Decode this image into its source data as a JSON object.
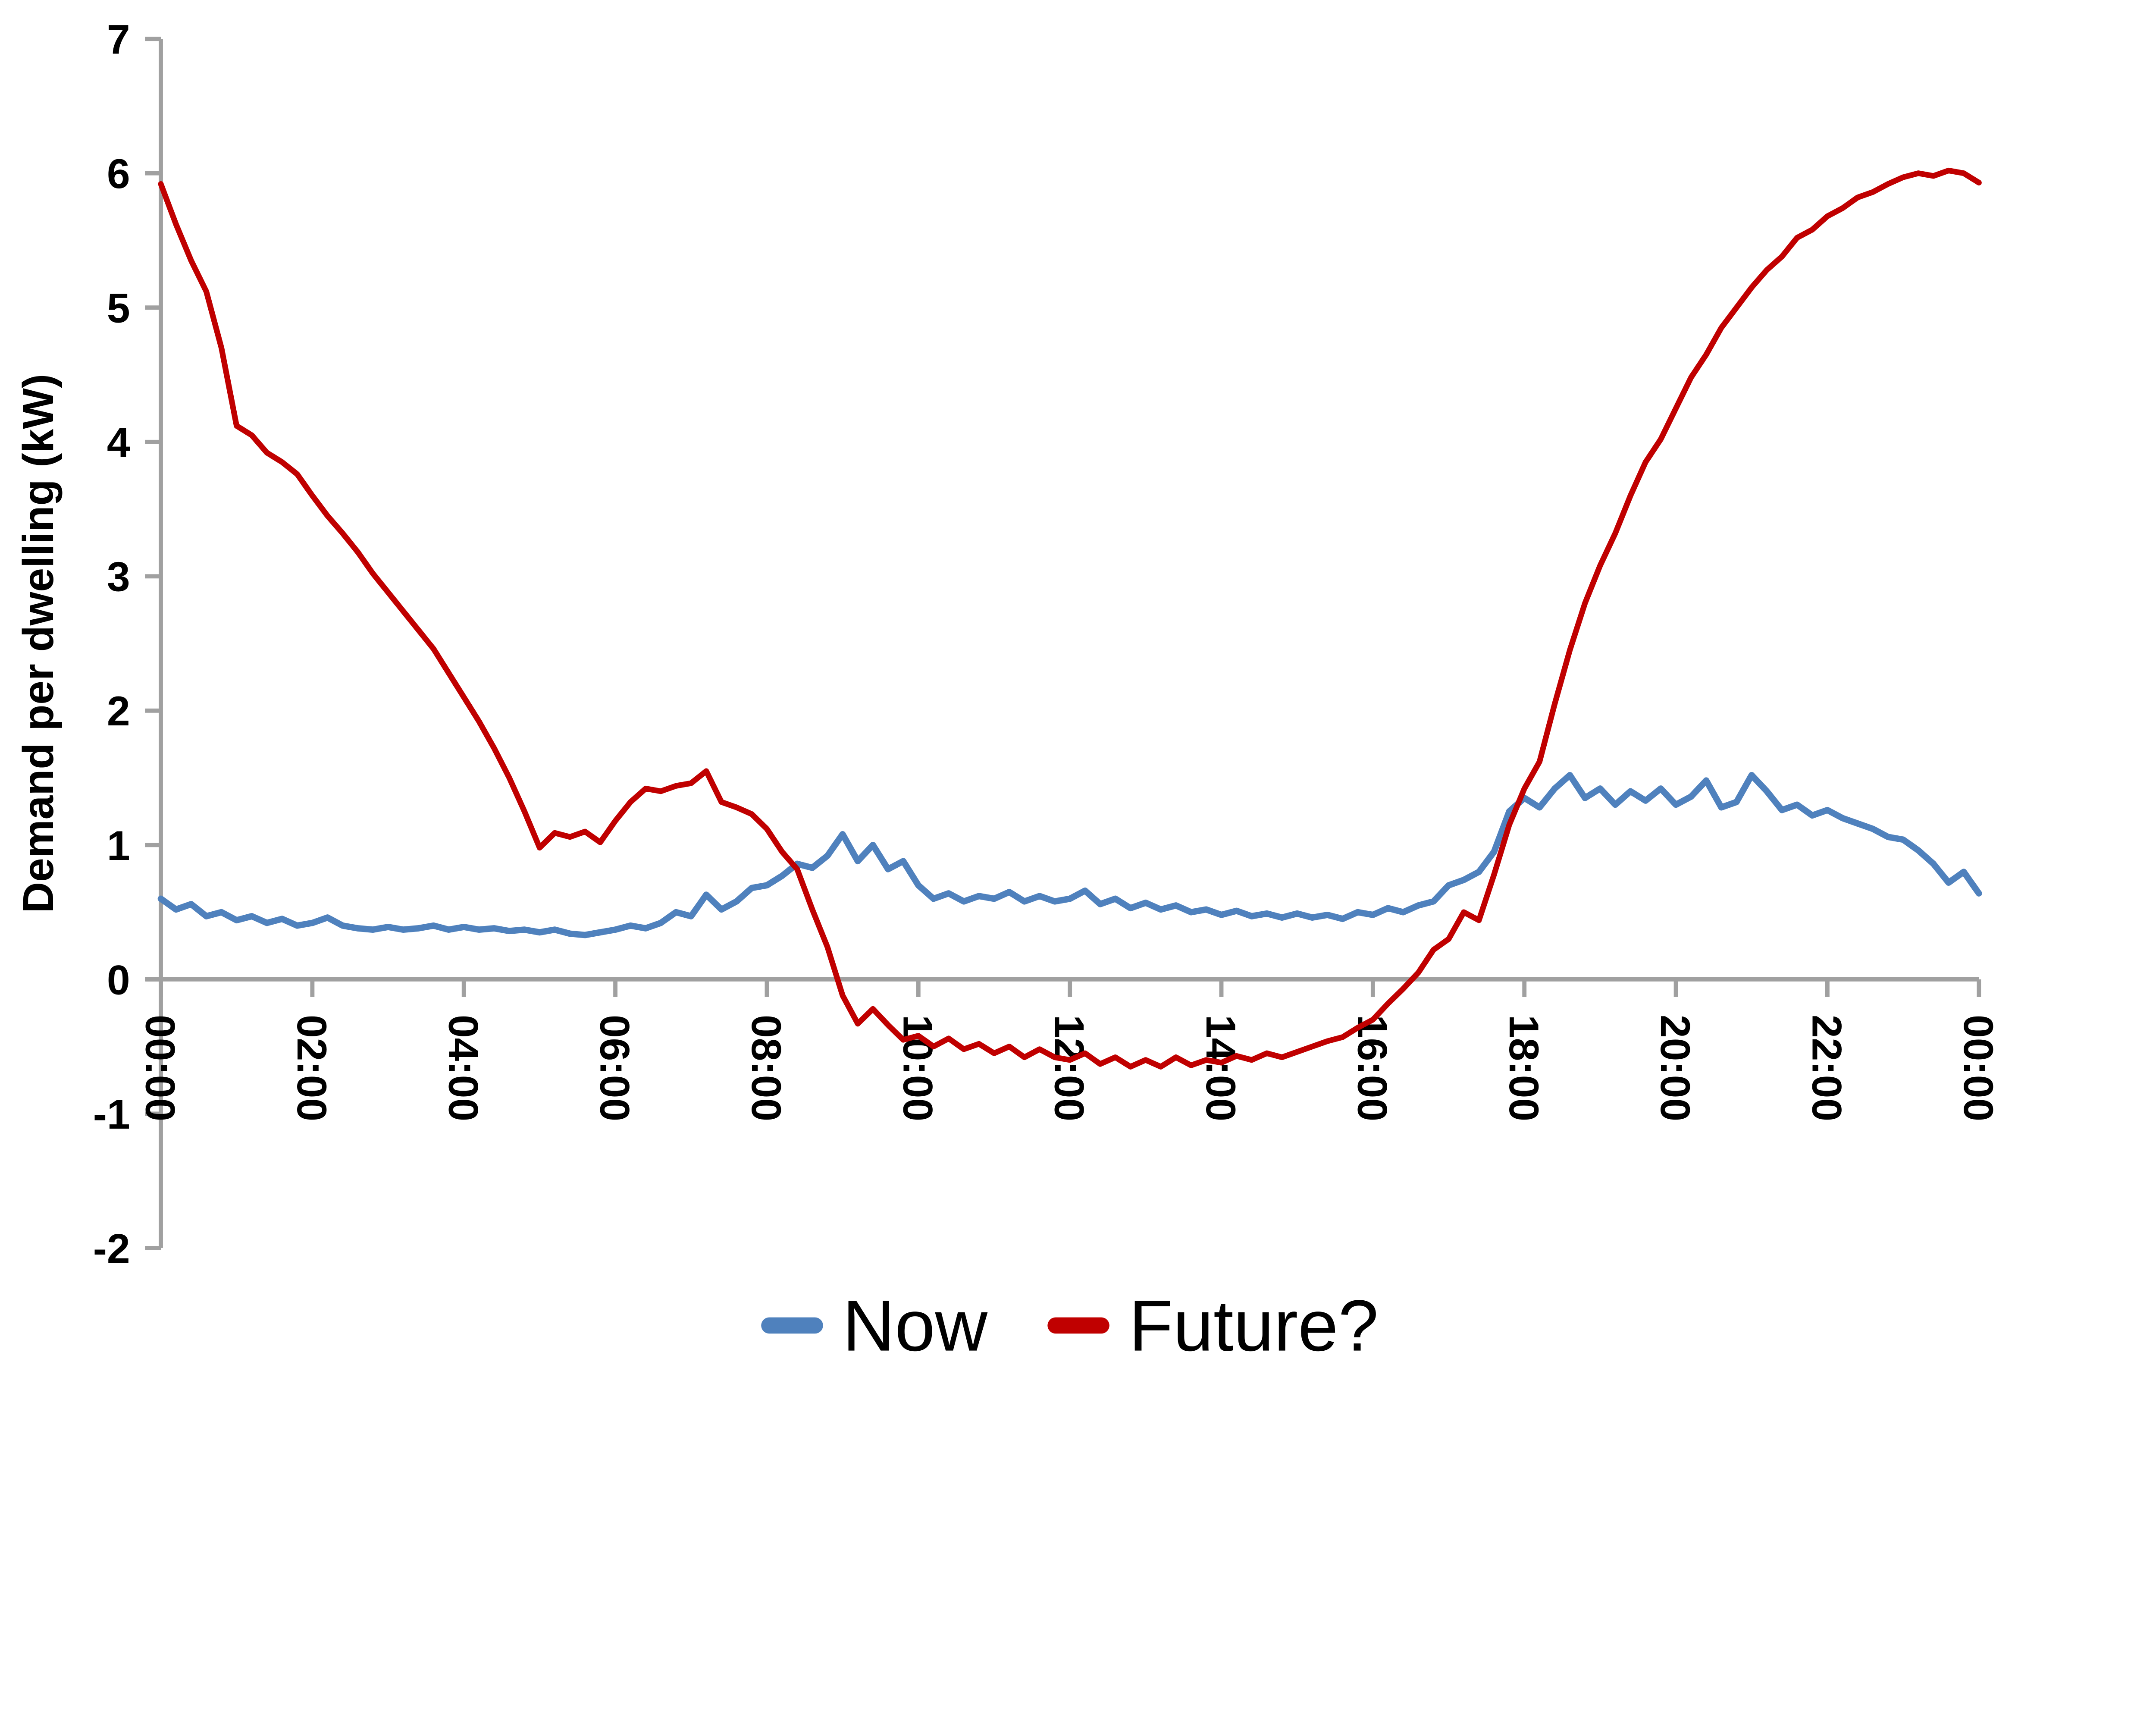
{
  "chart_data": {
    "type": "line",
    "title": "",
    "xlabel": "",
    "ylabel": "Demand per dwelling (kW)",
    "ylim": [
      -2,
      7
    ],
    "xlim_hours": [
      0,
      24
    ],
    "y_ticks": [
      7,
      6,
      5,
      4,
      3,
      2,
      1,
      0,
      -1,
      -2
    ],
    "x_ticks": [
      {
        "hour": 0,
        "label": "00:00"
      },
      {
        "hour": 2,
        "label": "02:00"
      },
      {
        "hour": 4,
        "label": "04:00"
      },
      {
        "hour": 6,
        "label": "06:00"
      },
      {
        "hour": 8,
        "label": "08:00"
      },
      {
        "hour": 10,
        "label": "10:00"
      },
      {
        "hour": 12,
        "label": "12:00"
      },
      {
        "hour": 14,
        "label": "14:00"
      },
      {
        "hour": 16,
        "label": "16:00"
      },
      {
        "hour": 18,
        "label": "18:00"
      },
      {
        "hour": 20,
        "label": "20:00"
      },
      {
        "hour": 22,
        "label": "22:00"
      },
      {
        "hour": 24,
        "label": "00:00"
      }
    ],
    "grid": false,
    "legend_position": "bottom-center",
    "axis_color": "#A0A0A0",
    "text_color": "#000000",
    "sample_interval_hours": 0.2,
    "series": [
      {
        "name": "Now",
        "color": "#4F81BD",
        "stroke_width": 18,
        "values": [
          0.6,
          0.52,
          0.56,
          0.47,
          0.5,
          0.44,
          0.47,
          0.42,
          0.45,
          0.4,
          0.42,
          0.46,
          0.4,
          0.38,
          0.37,
          0.39,
          0.37,
          0.38,
          0.4,
          0.37,
          0.39,
          0.37,
          0.38,
          0.36,
          0.37,
          0.35,
          0.37,
          0.34,
          0.33,
          0.35,
          0.37,
          0.4,
          0.38,
          0.42,
          0.5,
          0.47,
          0.63,
          0.52,
          0.58,
          0.68,
          0.7,
          0.77,
          0.86,
          0.83,
          0.92,
          1.08,
          0.88,
          1.0,
          0.82,
          0.88,
          0.7,
          0.6,
          0.64,
          0.58,
          0.62,
          0.6,
          0.65,
          0.58,
          0.62,
          0.58,
          0.6,
          0.66,
          0.56,
          0.6,
          0.53,
          0.57,
          0.52,
          0.55,
          0.5,
          0.52,
          0.48,
          0.51,
          0.47,
          0.49,
          0.46,
          0.49,
          0.46,
          0.48,
          0.45,
          0.5,
          0.48,
          0.53,
          0.5,
          0.55,
          0.58,
          0.7,
          0.74,
          0.8,
          0.95,
          1.25,
          1.35,
          1.28,
          1.42,
          1.52,
          1.35,
          1.42,
          1.3,
          1.4,
          1.33,
          1.42,
          1.3,
          1.36,
          1.48,
          1.28,
          1.32,
          1.52,
          1.4,
          1.26,
          1.3,
          1.22,
          1.26,
          1.2,
          1.16,
          1.12,
          1.06,
          1.04,
          0.96,
          0.86,
          0.72,
          0.8,
          0.64
        ]
      },
      {
        "name": "Future?",
        "color": "#C00000",
        "stroke_width": 16,
        "values": [
          5.92,
          5.62,
          5.35,
          5.12,
          4.7,
          4.12,
          4.05,
          3.92,
          3.85,
          3.76,
          3.6,
          3.45,
          3.32,
          3.18,
          3.02,
          2.88,
          2.74,
          2.6,
          2.46,
          2.28,
          2.1,
          1.92,
          1.72,
          1.5,
          1.25,
          0.98,
          1.09,
          1.06,
          1.1,
          1.02,
          1.18,
          1.32,
          1.42,
          1.4,
          1.44,
          1.46,
          1.55,
          1.32,
          1.28,
          1.23,
          1.12,
          0.95,
          0.82,
          0.52,
          0.24,
          -0.12,
          -0.33,
          -0.22,
          -0.34,
          -0.45,
          -0.42,
          -0.5,
          -0.44,
          -0.52,
          -0.48,
          -0.55,
          -0.5,
          -0.58,
          -0.52,
          -0.58,
          -0.6,
          -0.55,
          -0.63,
          -0.58,
          -0.65,
          -0.6,
          -0.65,
          -0.58,
          -0.64,
          -0.6,
          -0.62,
          -0.57,
          -0.6,
          -0.55,
          -0.58,
          -0.54,
          -0.5,
          -0.46,
          -0.43,
          -0.36,
          -0.3,
          -0.18,
          -0.07,
          0.05,
          0.22,
          0.3,
          0.5,
          0.44,
          0.78,
          1.15,
          1.42,
          1.62,
          2.05,
          2.45,
          2.8,
          3.08,
          3.32,
          3.6,
          3.85,
          4.02,
          4.25,
          4.48,
          4.65,
          4.85,
          5.0,
          5.15,
          5.28,
          5.38,
          5.52,
          5.58,
          5.68,
          5.74,
          5.82,
          5.86,
          5.92,
          5.97,
          6.0,
          5.98,
          6.02,
          6.0,
          5.93
        ]
      }
    ]
  }
}
